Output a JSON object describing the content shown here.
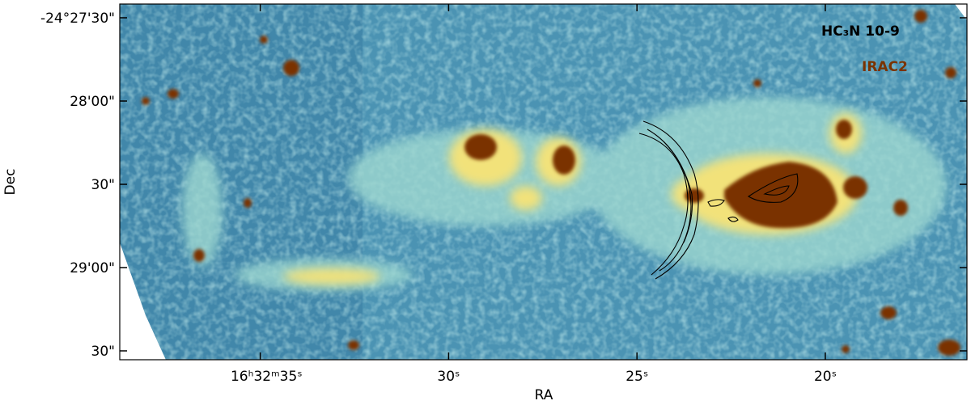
{
  "chart_data": {
    "type": "image",
    "xlabel": "RA",
    "ylabel": "Dec",
    "xlim": [
      38.73,
      16.24
    ],
    "xticks": [
      {
        "value": 35,
        "label": "16ʰ32ᵐ35ˢ"
      },
      {
        "value": 30,
        "label": "30ˢ"
      },
      {
        "value": 25,
        "label": "25ˢ"
      },
      {
        "value": 20,
        "label": "20ˢ"
      }
    ],
    "ylim": [
      -88173.2,
      -88045.05
    ],
    "yticks": [
      {
        "value": -88050,
        "label": "-24°27'30\""
      },
      {
        "value": -88080,
        "label": "28'00\""
      },
      {
        "value": -88110,
        "label": "30\""
      },
      {
        "value": -88140,
        "label": "29'00\""
      },
      {
        "value": -88170,
        "label": "30\""
      }
    ],
    "legend": [
      {
        "name": "HC₃N 10-9",
        "color": "#000000"
      },
      {
        "name": "IRAC2",
        "color": "#7a3300"
      }
    ]
  }
}
